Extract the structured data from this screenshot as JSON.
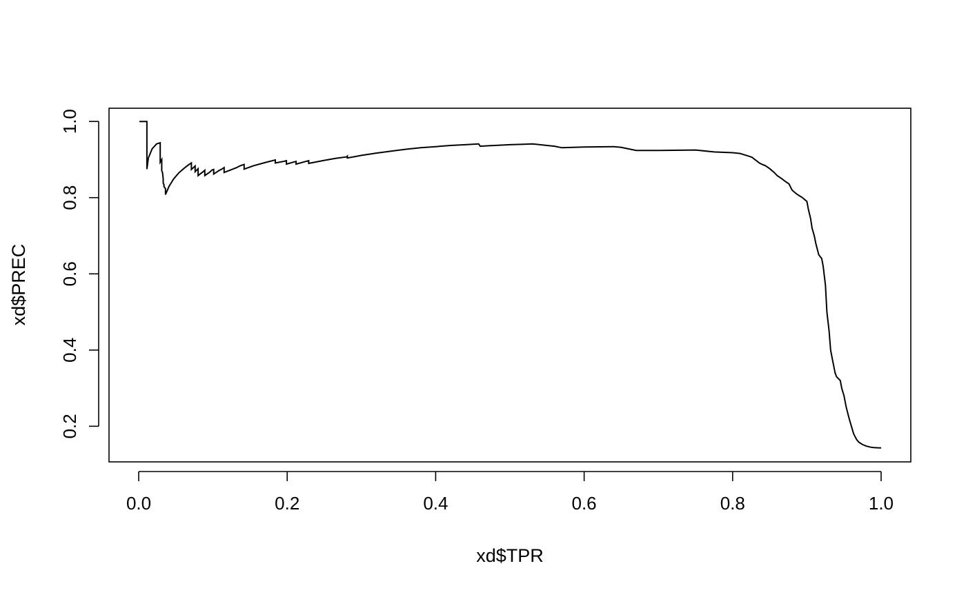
{
  "chart_data": {
    "type": "line",
    "title": "",
    "xlabel": "xd$TPR",
    "ylabel": "xd$PREC",
    "xlim": [
      -0.04,
      1.04
    ],
    "ylim": [
      0.1065,
      1.0347
    ],
    "grid": false,
    "legend": "none",
    "line_color": "#000000",
    "x_ticks": [
      0.0,
      0.2,
      0.4,
      0.6,
      0.8,
      1.0
    ],
    "x_tick_labels": [
      "0.0",
      "0.2",
      "0.4",
      "0.6",
      "0.8",
      "1.0"
    ],
    "y_ticks": [
      0.2,
      0.4,
      0.6,
      0.8,
      1.0
    ],
    "y_tick_labels": [
      "0.2",
      "0.4",
      "0.6",
      "0.8",
      "1.0"
    ],
    "series": [
      {
        "x": [
          0.001,
          0.011,
          0.011,
          0.013,
          0.018,
          0.024,
          0.029,
          0.029,
          0.031,
          0.031,
          0.032,
          0.033,
          0.033,
          0.034,
          0.034,
          0.036,
          0.036,
          0.041,
          0.047,
          0.054,
          0.061,
          0.067,
          0.071,
          0.071,
          0.076,
          0.076,
          0.08,
          0.08,
          0.086,
          0.089,
          0.089,
          0.095,
          0.099,
          0.101,
          0.101,
          0.108,
          0.112,
          0.115,
          0.115,
          0.124,
          0.132,
          0.136,
          0.14,
          0.142,
          0.142,
          0.155,
          0.17,
          0.184,
          0.184,
          0.195,
          0.199,
          0.199,
          0.208,
          0.212,
          0.212,
          0.225,
          0.229,
          0.229,
          0.25,
          0.265,
          0.28,
          0.281,
          0.281,
          0.3,
          0.32,
          0.34,
          0.36,
          0.38,
          0.4,
          0.42,
          0.44,
          0.458,
          0.46,
          0.47,
          0.5,
          0.53,
          0.535,
          0.55,
          0.56,
          0.57,
          0.6,
          0.64,
          0.65,
          0.67,
          0.7,
          0.75,
          0.775,
          0.8,
          0.81,
          0.815,
          0.82,
          0.826,
          0.83,
          0.836,
          0.84,
          0.844,
          0.85,
          0.856,
          0.86,
          0.866,
          0.87,
          0.876,
          0.88,
          0.886,
          0.89,
          0.894,
          0.9,
          0.902,
          0.905,
          0.907,
          0.91,
          0.912,
          0.916,
          0.92,
          0.922,
          0.925,
          0.927,
          0.93,
          0.932,
          0.935,
          0.938,
          0.94,
          0.945,
          0.947,
          0.95,
          0.953,
          0.957,
          0.96,
          0.963,
          0.967,
          0.97,
          0.975,
          0.98,
          0.986,
          0.99,
          1.0
        ],
        "y": [
          1.0,
          1.0,
          0.875,
          0.904,
          0.928,
          0.941,
          0.944,
          0.893,
          0.9,
          0.871,
          0.866,
          0.85,
          0.838,
          0.835,
          0.829,
          0.824,
          0.808,
          0.83,
          0.849,
          0.865,
          0.877,
          0.886,
          0.891,
          0.874,
          0.883,
          0.868,
          0.876,
          0.858,
          0.867,
          0.872,
          0.858,
          0.866,
          0.873,
          0.874,
          0.862,
          0.871,
          0.875,
          0.879,
          0.866,
          0.873,
          0.879,
          0.883,
          0.886,
          0.887,
          0.875,
          0.884,
          0.892,
          0.899,
          0.891,
          0.895,
          0.897,
          0.888,
          0.893,
          0.895,
          0.888,
          0.895,
          0.897,
          0.89,
          0.898,
          0.903,
          0.907,
          0.909,
          0.904,
          0.911,
          0.917,
          0.922,
          0.927,
          0.931,
          0.934,
          0.937,
          0.939,
          0.941,
          0.935,
          0.936,
          0.939,
          0.941,
          0.94,
          0.937,
          0.935,
          0.931,
          0.933,
          0.934,
          0.932,
          0.924,
          0.924,
          0.925,
          0.92,
          0.918,
          0.916,
          0.913,
          0.91,
          0.906,
          0.9,
          0.891,
          0.887,
          0.884,
          0.876,
          0.866,
          0.858,
          0.85,
          0.844,
          0.836,
          0.82,
          0.81,
          0.805,
          0.8,
          0.79,
          0.77,
          0.745,
          0.72,
          0.7,
          0.68,
          0.65,
          0.64,
          0.62,
          0.57,
          0.5,
          0.45,
          0.4,
          0.37,
          0.34,
          0.33,
          0.32,
          0.3,
          0.28,
          0.25,
          0.22,
          0.2,
          0.18,
          0.165,
          0.158,
          0.152,
          0.148,
          0.145,
          0.144,
          0.143
        ]
      }
    ]
  }
}
